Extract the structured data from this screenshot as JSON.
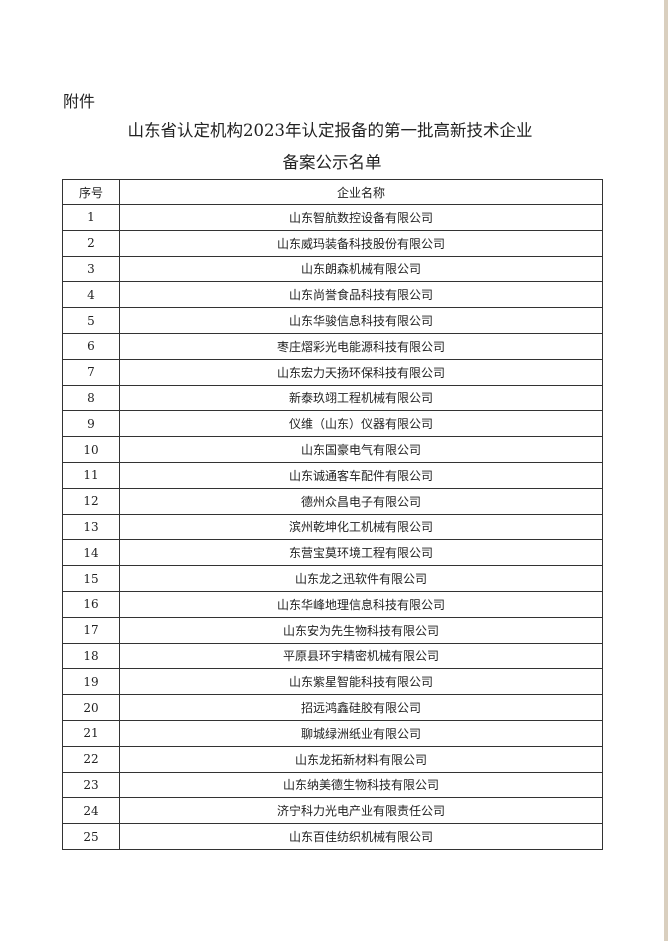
{
  "document": {
    "attachment_label": "附件",
    "title_line1": "山东省认定机构2023年认定报备的第一批高新技术企业",
    "title_line2": "备案公示名单"
  },
  "table": {
    "headers": [
      "序号",
      "企业名称"
    ],
    "rows": [
      [
        "1",
        "山东智航数控设备有限公司"
      ],
      [
        "2",
        "山东威玛装备科技股份有限公司"
      ],
      [
        "3",
        "山东朗森机械有限公司"
      ],
      [
        "4",
        "山东尚誉食品科技有限公司"
      ],
      [
        "5",
        "山东华骏信息科技有限公司"
      ],
      [
        "6",
        "枣庄熠彩光电能源科技有限公司"
      ],
      [
        "7",
        "山东宏力天扬环保科技有限公司"
      ],
      [
        "8",
        "新泰玖翊工程机械有限公司"
      ],
      [
        "9",
        "仪维（山东）仪器有限公司"
      ],
      [
        "10",
        "山东国豪电气有限公司"
      ],
      [
        "11",
        "山东诚通客车配件有限公司"
      ],
      [
        "12",
        "德州众昌电子有限公司"
      ],
      [
        "13",
        "滨州乾坤化工机械有限公司"
      ],
      [
        "14",
        "东营宝莫环境工程有限公司"
      ],
      [
        "15",
        "山东龙之迅软件有限公司"
      ],
      [
        "16",
        "山东华峰地理信息科技有限公司"
      ],
      [
        "17",
        "山东安为先生物科技有限公司"
      ],
      [
        "18",
        "平原县环宇精密机械有限公司"
      ],
      [
        "19",
        "山东紫星智能科技有限公司"
      ],
      [
        "20",
        "招远鸿鑫硅胶有限公司"
      ],
      [
        "21",
        "聊城绿洲纸业有限公司"
      ],
      [
        "22",
        "山东龙拓新材料有限公司"
      ],
      [
        "23",
        "山东纳美德生物科技有限公司"
      ],
      [
        "24",
        "济宁科力光电产业有限责任公司"
      ],
      [
        "25",
        "山东百佳纺织机械有限公司"
      ]
    ]
  }
}
